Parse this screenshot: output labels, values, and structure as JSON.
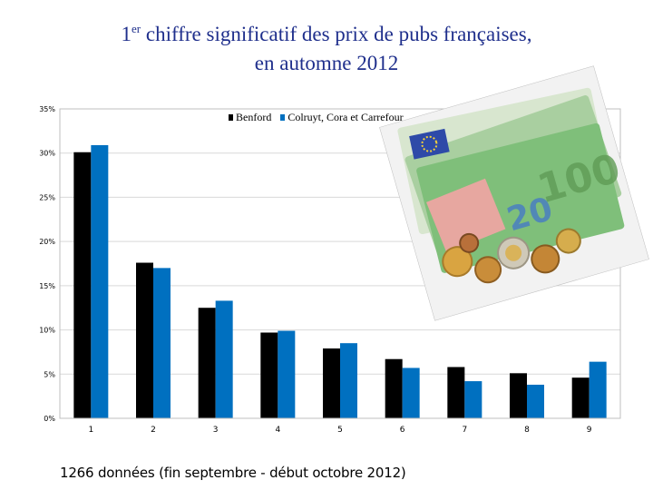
{
  "title": {
    "line1_prefix": "1",
    "line1_sup": "er",
    "line1_rest": " chiffre significatif des prix de pubs françaises,",
    "line2": "en automne 2012"
  },
  "footnote": "1266 données (fin septembre - début octobre 2012)",
  "colors": {
    "benford": "#000000",
    "retail": "#0070c0",
    "title": "#1f2f8c",
    "grid": "#d9d9d9"
  },
  "legend": {
    "series1": "Benford",
    "series2": "Colruyt, Cora et Carrefour"
  },
  "photo_icon": "euro-banknotes-and-coins-photo",
  "chart_data": {
    "type": "bar",
    "categories": [
      "1",
      "2",
      "3",
      "4",
      "5",
      "6",
      "7",
      "8",
      "9"
    ],
    "series": [
      {
        "name": "Benford",
        "values": [
          30.1,
          17.6,
          12.5,
          9.7,
          7.9,
          6.7,
          5.8,
          5.1,
          4.6
        ]
      },
      {
        "name": "Colruyt, Cora et Carrefour",
        "values": [
          30.9,
          17.0,
          13.3,
          9.9,
          8.5,
          5.7,
          4.2,
          3.8,
          6.4
        ]
      }
    ],
    "y_ticks": [
      "0%",
      "5%",
      "10%",
      "15%",
      "20%",
      "25%",
      "30%",
      "35%"
    ],
    "ylim": [
      0,
      35
    ],
    "grid": true,
    "legend_position": "top"
  }
}
